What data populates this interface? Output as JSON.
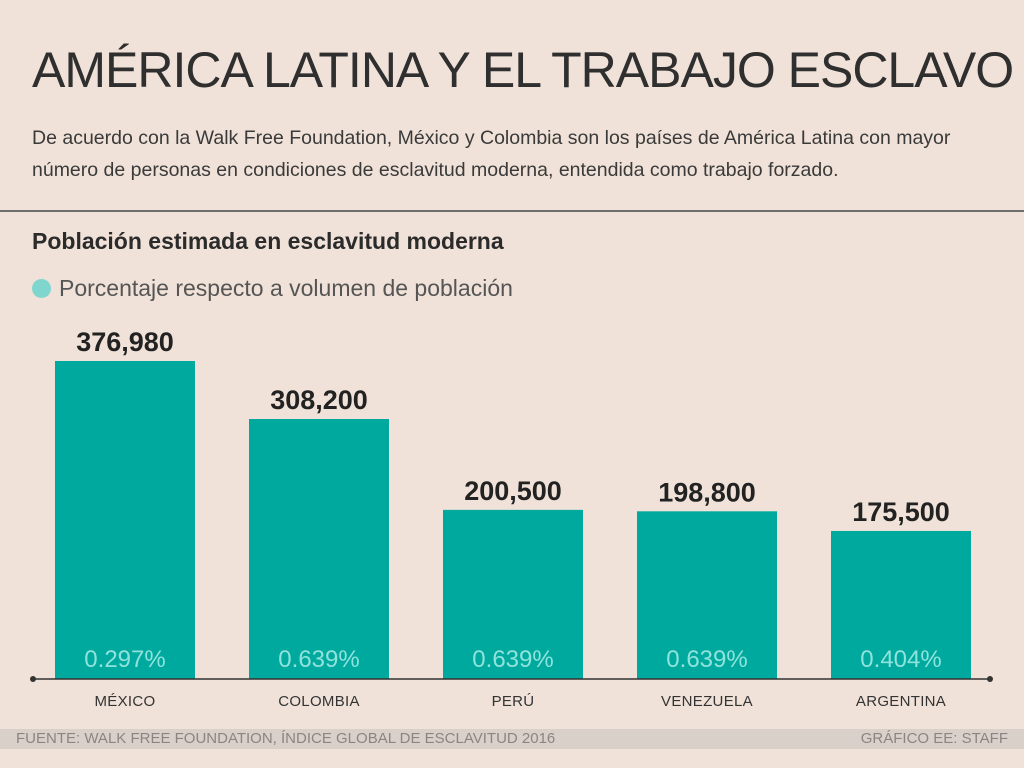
{
  "header": {
    "title": "AMÉRICA LATINA Y EL TRABAJO ESCLAVO",
    "subtitle": "De acuerdo con la Walk Free Foundation, México y Colombia son los países de América Latina con mayor número de personas en condiciones de esclavitud moderna, entendida como trabajo forzado."
  },
  "legend": {
    "label": "Porcentaje respecto a volumen de población",
    "dot_color": "#7fd6cf"
  },
  "chart_data": {
    "type": "bar",
    "title": "Población estimada en esclavitud moderna",
    "categories": [
      "MÉXICO",
      "COLOMBIA",
      "PERÚ",
      "VENEZUELA",
      "ARGENTINA"
    ],
    "values": [
      376980,
      308200,
      200500,
      198800,
      175500
    ],
    "value_labels": [
      "376,980",
      "308,200",
      "200,500",
      "198,800",
      "175,500"
    ],
    "percent_labels": [
      "0.297%",
      "0.639%",
      "0.639%",
      "0.639%",
      "0.404%"
    ],
    "bar_color": "#00a99d",
    "percent_color": "#8fe3dc",
    "grid": false,
    "legend_position": "top-left"
  },
  "footer": {
    "source": "FUENTE: WALK FREE FOUNDATION, ÍNDICE GLOBAL DE ESCLAVITUD 2016",
    "credit": "GRÁFICO EE: STAFF"
  }
}
